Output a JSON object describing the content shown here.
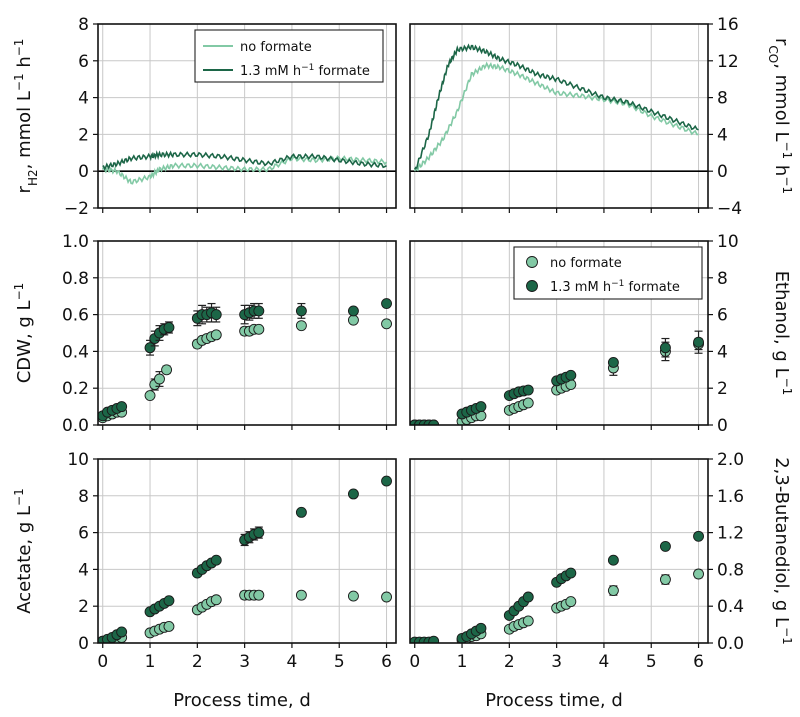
{
  "colors": {
    "no_formate": "#82c9a5",
    "formate": "#1c6647",
    "grid": "#c8c8c8",
    "frame": "#111111"
  },
  "legend": {
    "no_formate": "no formate",
    "formate_prefix": "1.3 mM h",
    "formate_sup": "−1",
    "formate_suffix": " formate"
  },
  "xaxis_label": "Process time, d",
  "chart_data": [
    {
      "id": "rh2",
      "type": "line",
      "ylabel": "r<sub>H2</sub>, mmol L<sup>−1</sup> h<sup>−1</sup>",
      "xlim": [
        -0.1,
        6.2
      ],
      "ylim": [
        -2,
        8
      ],
      "yticks": [
        -2,
        0,
        2,
        4,
        6,
        8
      ],
      "zero_line": true,
      "series": [
        {
          "name": "no formate",
          "x": [
            0,
            0.3,
            0.6,
            1.0,
            1.2,
            1.5,
            2.0,
            2.5,
            3.0,
            3.5,
            4.0,
            4.5,
            5.0,
            5.5,
            6.0
          ],
          "y": [
            0.1,
            0,
            -0.6,
            -0.3,
            0.1,
            0.3,
            0.3,
            0.2,
            0.1,
            0.1,
            0.7,
            0.6,
            0.7,
            0.6,
            0.5
          ]
        },
        {
          "name": "1.3 mM h−1 formate",
          "x": [
            0,
            0.3,
            0.6,
            1.0,
            1.2,
            1.5,
            2.0,
            2.5,
            3.0,
            3.5,
            4.0,
            4.5,
            5.0,
            5.5,
            6.0
          ],
          "y": [
            0.2,
            0.4,
            0.7,
            0.8,
            0.9,
            0.9,
            0.9,
            0.8,
            0.6,
            0.4,
            0.8,
            0.8,
            0.6,
            0.4,
            0.3
          ]
        }
      ]
    },
    {
      "id": "rco",
      "type": "line",
      "ylabel": "r<sub>CO</sub>, mmol L<sup>−1</sup> h<sup>−1</sup>",
      "xlim": [
        -0.1,
        6.2
      ],
      "ylim": [
        -4,
        16
      ],
      "yticks": [
        -4,
        0,
        4,
        8,
        12,
        16
      ],
      "zero_line": true,
      "series": [
        {
          "name": "no formate",
          "x": [
            0,
            0.3,
            0.6,
            0.9,
            1.2,
            1.5,
            1.8,
            2.2,
            2.6,
            3.0,
            3.5,
            4.0,
            4.5,
            5.0,
            5.5,
            6.0
          ],
          "y": [
            0,
            1.5,
            3.5,
            6.5,
            10.5,
            11.5,
            11.3,
            10.5,
            9.5,
            8.5,
            8.2,
            7.8,
            7.3,
            6,
            5,
            4
          ]
        },
        {
          "name": "1.3 mM h−1 formate",
          "x": [
            0,
            0.3,
            0.5,
            0.7,
            0.9,
            1.2,
            1.5,
            1.8,
            2.2,
            2.6,
            3.0,
            3.5,
            4.0,
            4.5,
            5.0,
            5.5,
            6.0
          ],
          "y": [
            0,
            4,
            8,
            11.5,
            13.2,
            13.5,
            13,
            12.2,
            11.5,
            10.5,
            10,
            9,
            8,
            7.5,
            6.5,
            5.5,
            4.5
          ]
        }
      ]
    },
    {
      "id": "cdw",
      "type": "scatter",
      "ylabel": "CDW, g L<sup>−1</sup>",
      "xlim": [
        -0.1,
        6.2
      ],
      "ylim": [
        0,
        1.0
      ],
      "yticks": [
        0.0,
        0.2,
        0.4,
        0.6,
        0.8,
        1.0
      ],
      "series": [
        {
          "name": "no formate",
          "x": [
            0,
            0.1,
            0.2,
            0.3,
            0.4,
            1.0,
            1.1,
            1.2,
            1.35,
            2.0,
            2.1,
            2.2,
            2.3,
            2.4,
            3.0,
            3.1,
            3.2,
            3.3,
            4.2,
            5.3,
            6.0
          ],
          "y": [
            0.04,
            0.05,
            0.06,
            0.07,
            0.07,
            0.16,
            0.22,
            0.25,
            0.3,
            0.44,
            0.46,
            0.47,
            0.48,
            0.49,
            0.51,
            0.51,
            0.52,
            0.52,
            0.54,
            0.57,
            0.55
          ],
          "err": [
            0,
            0,
            0,
            0,
            0,
            0,
            0.03,
            0.04,
            0.02,
            0.02,
            0,
            0,
            0,
            0,
            0.02,
            0.02,
            0,
            0,
            0,
            0,
            0
          ]
        },
        {
          "name": "1.3 mM h−1 formate",
          "x": [
            0,
            0.1,
            0.2,
            0.3,
            0.4,
            1.0,
            1.1,
            1.2,
            1.3,
            1.4,
            2.0,
            2.1,
            2.2,
            2.3,
            2.4,
            3.0,
            3.1,
            3.2,
            3.3,
            4.2,
            5.3,
            6.0
          ],
          "y": [
            0.05,
            0.07,
            0.08,
            0.09,
            0.1,
            0.42,
            0.47,
            0.5,
            0.52,
            0.53,
            0.58,
            0.6,
            0.6,
            0.61,
            0.6,
            0.6,
            0.61,
            0.62,
            0.62,
            0.62,
            0.62,
            0.66
          ],
          "err": [
            0,
            0,
            0,
            0,
            0,
            0.04,
            0.04,
            0.04,
            0.03,
            0.03,
            0.04,
            0.05,
            0.04,
            0.05,
            0.04,
            0.05,
            0.04,
            0.04,
            0.04,
            0.04,
            0,
            0
          ]
        }
      ]
    },
    {
      "id": "ethanol",
      "type": "scatter",
      "ylabel": "Ethanol, g L<sup>−1</sup>",
      "xlim": [
        -0.1,
        6.2
      ],
      "ylim": [
        0,
        10
      ],
      "yticks": [
        0,
        2,
        4,
        6,
        8,
        10
      ],
      "legend": "top-right",
      "series": [
        {
          "name": "no formate",
          "x": [
            0,
            0.1,
            0.2,
            0.3,
            0.4,
            1.0,
            1.1,
            1.2,
            1.3,
            1.4,
            2.0,
            2.1,
            2.2,
            2.3,
            2.4,
            3.0,
            3.1,
            3.2,
            3.3,
            4.2,
            5.3,
            6.0
          ],
          "y": [
            0,
            0,
            0,
            0,
            0,
            0.2,
            0.3,
            0.4,
            0.5,
            0.5,
            0.8,
            0.9,
            1.0,
            1.1,
            1.2,
            1.9,
            2.0,
            2.1,
            2.2,
            3.1,
            4.0,
            4.4
          ],
          "err": [
            0,
            0,
            0,
            0,
            0,
            0,
            0,
            0,
            0,
            0,
            0,
            0,
            0,
            0,
            0,
            0,
            0,
            0,
            0,
            0.4,
            0.5,
            0.3
          ]
        },
        {
          "name": "1.3 mM h−1 formate",
          "x": [
            0,
            0.1,
            0.2,
            0.3,
            0.4,
            1.0,
            1.1,
            1.2,
            1.3,
            1.4,
            2.0,
            2.1,
            2.2,
            2.3,
            2.4,
            3.0,
            3.1,
            3.2,
            3.3,
            4.2,
            5.3,
            6.0
          ],
          "y": [
            0,
            0,
            0,
            0,
            0,
            0.6,
            0.7,
            0.8,
            0.9,
            1.0,
            1.6,
            1.7,
            1.8,
            1.85,
            1.9,
            2.4,
            2.5,
            2.6,
            2.7,
            3.4,
            4.2,
            4.5
          ],
          "err": [
            0,
            0,
            0,
            0,
            0,
            0,
            0,
            0,
            0,
            0,
            0,
            0,
            0,
            0,
            0,
            0,
            0,
            0,
            0,
            0,
            0.5,
            0.6
          ]
        }
      ]
    },
    {
      "id": "acetate",
      "type": "scatter",
      "ylabel": "Acetate, g L<sup>−1</sup>",
      "xlim": [
        -0.1,
        6.2
      ],
      "ylim": [
        0,
        10
      ],
      "yticks": [
        0,
        2,
        4,
        6,
        8,
        10
      ],
      "series": [
        {
          "name": "no formate",
          "x": [
            0,
            0.1,
            0.2,
            0.3,
            0.4,
            1.0,
            1.1,
            1.2,
            1.3,
            1.4,
            2.0,
            2.1,
            2.2,
            2.3,
            2.4,
            3.0,
            3.1,
            3.2,
            3.3,
            4.2,
            5.3,
            6.0
          ],
          "y": [
            0.1,
            0.15,
            0.2,
            0.25,
            0.3,
            0.55,
            0.65,
            0.75,
            0.85,
            0.9,
            1.8,
            1.95,
            2.1,
            2.25,
            2.35,
            2.6,
            2.6,
            2.6,
            2.6,
            2.6,
            2.55,
            2.5
          ],
          "err": [
            0,
            0,
            0,
            0,
            0,
            0,
            0,
            0,
            0,
            0,
            0,
            0,
            0,
            0,
            0,
            0.2,
            0.2,
            0.2,
            0.2,
            0,
            0,
            0
          ]
        },
        {
          "name": "1.3 mM h−1 formate",
          "x": [
            0,
            0.1,
            0.2,
            0.3,
            0.4,
            1.0,
            1.1,
            1.2,
            1.3,
            1.4,
            2.0,
            2.1,
            2.2,
            2.3,
            2.4,
            3.0,
            3.1,
            3.2,
            3.3,
            4.2,
            5.3,
            6.0
          ],
          "y": [
            0.1,
            0.2,
            0.3,
            0.45,
            0.6,
            1.7,
            1.85,
            2.0,
            2.15,
            2.3,
            3.8,
            4.0,
            4.2,
            4.35,
            4.5,
            5.6,
            5.75,
            5.9,
            6.0,
            7.1,
            8.1,
            8.8
          ],
          "err": [
            0,
            0,
            0,
            0,
            0,
            0,
            0,
            0,
            0,
            0,
            0,
            0,
            0,
            0,
            0,
            0.3,
            0.3,
            0.3,
            0.3,
            0,
            0,
            0
          ]
        }
      ]
    },
    {
      "id": "butanediol",
      "type": "scatter",
      "ylabel": "2,3-Butanediol, g L<sup>−1</sup>",
      "xlim": [
        -0.1,
        6.2
      ],
      "ylim": [
        0,
        2.0
      ],
      "yticks": [
        0.0,
        0.4,
        0.8,
        1.2,
        1.6,
        2.0
      ],
      "series": [
        {
          "name": "no formate",
          "x": [
            0,
            0.1,
            0.2,
            0.3,
            0.4,
            1.0,
            1.1,
            1.2,
            1.3,
            1.4,
            2.0,
            2.1,
            2.2,
            2.3,
            2.4,
            3.0,
            3.1,
            3.2,
            3.3,
            4.2,
            5.3,
            6.0
          ],
          "y": [
            0,
            0,
            0,
            0,
            0,
            0.03,
            0.05,
            0.07,
            0.08,
            0.1,
            0.15,
            0.18,
            0.2,
            0.22,
            0.24,
            0.38,
            0.4,
            0.42,
            0.45,
            0.57,
            0.69,
            0.75
          ],
          "err": [
            0,
            0,
            0,
            0,
            0,
            0,
            0,
            0,
            0,
            0,
            0,
            0,
            0,
            0,
            0,
            0,
            0,
            0,
            0,
            0.05,
            0.05,
            0.04
          ]
        },
        {
          "name": "1.3 mM h−1 formate",
          "x": [
            0,
            0.1,
            0.2,
            0.3,
            0.4,
            1.0,
            1.1,
            1.2,
            1.3,
            1.4,
            2.0,
            2.1,
            2.2,
            2.3,
            2.4,
            3.0,
            3.1,
            3.2,
            3.3,
            4.2,
            5.3,
            6.0
          ],
          "y": [
            0.01,
            0.01,
            0.01,
            0.01,
            0.02,
            0.05,
            0.07,
            0.1,
            0.13,
            0.16,
            0.3,
            0.35,
            0.4,
            0.45,
            0.5,
            0.66,
            0.7,
            0.73,
            0.76,
            0.9,
            1.05,
            1.16
          ],
          "err": [
            0,
            0,
            0,
            0,
            0,
            0,
            0,
            0,
            0,
            0,
            0,
            0,
            0,
            0,
            0,
            0,
            0,
            0,
            0,
            0,
            0,
            0
          ]
        }
      ]
    }
  ]
}
